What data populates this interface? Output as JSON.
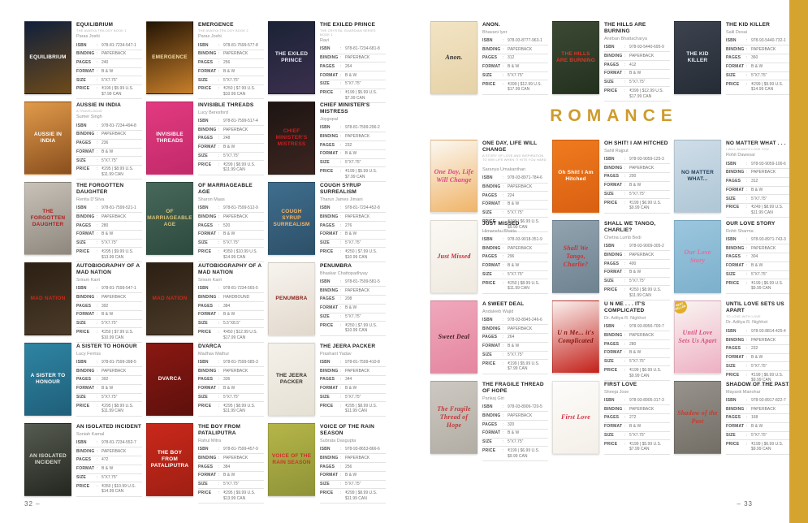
{
  "colon": ":",
  "section_header": "ROMANCE",
  "accent_gold": "#D5A42F",
  "page_left_number": "32 –",
  "page_right_number": "– 33",
  "spec_labels": {
    "isbn": "ISBN",
    "binding": "BINDING",
    "pages": "PAGES",
    "format": "FORMAT",
    "size": "SIZE",
    "price": "PRICE"
  },
  "books_left": [
    {
      "title": "EQUILIBRIUM",
      "subtitle": "THE AVASYA TRILOGY BOOK 1",
      "author": "Paras Joshi",
      "isbn": "978-81-7234-547-1",
      "binding": "PAPERBACK",
      "pages": "240",
      "format": "B & W",
      "size": "5\"X7.75\"",
      "price": "₹199 | $5.99 U.S.",
      "price2": "$7.99 CAN",
      "cover": {
        "c1": "#10203a",
        "c2": "#6e4a1a",
        "tc": "#ffffff",
        "label": "EQUILIBRIUM"
      }
    },
    {
      "title": "EMERGENCE",
      "subtitle": "THE AVASYA TRILOGY BOOK 2",
      "author": "Paras Joshi",
      "isbn": "978-81-7599-577-8",
      "binding": "PAPERBACK",
      "pages": "256",
      "format": "B & W",
      "size": "5\"X7.75\"",
      "price": "₹250 | $7.99 U.S.",
      "price2": "$10.99 CAN",
      "cover": {
        "c1": "#241505",
        "c2": "#c87f2a",
        "tc": "#f5dca6",
        "label": "EMERGENCE"
      }
    },
    {
      "title": "THE EXILED PRINCE",
      "subtitle": "THE CRYSTAL GUARDIAN SERIES BOOK 1",
      "author": "Ravi",
      "isbn": "978-81-7234-681-8",
      "binding": "PAPERBACK",
      "pages": "264",
      "format": "B & W",
      "size": "5\"X7.75\"",
      "price": "₹199 | $5.99 U.S.",
      "price2": "$7.99 CAN",
      "cover": {
        "c1": "#1b2336",
        "c2": "#3b2f4e",
        "tc": "#e9e9f2",
        "label": "THE EXILED PRINCE"
      }
    },
    {
      "title": "AUSSIE IN INDIA",
      "subtitle": "A TRAVELOGUE",
      "author": "Sumer Singh",
      "isbn": "978-81-7234-494-8",
      "binding": "PAPERBACK",
      "pages": "236",
      "format": "B & W",
      "size": "5\"X7.75\"",
      "price": "₹295 | $8.99 U.S.",
      "price2": "$11.99 CAN",
      "cover": {
        "c1": "#e09a4a",
        "c2": "#8a4f1e",
        "tc": "#ffffff",
        "label": "AUSSIE IN INDIA"
      }
    },
    {
      "title": "INVISIBLE THREADS",
      "author": "Lucy Beresford",
      "isbn": "978-81-7599-517-4",
      "binding": "PAPERBACK",
      "pages": "248",
      "format": "B & W",
      "size": "5\"X7.75\"",
      "price": "₹299 | $8.99 U.S.",
      "price2": "$11.99 CAN",
      "cover": {
        "c1": "#e23a80",
        "c2": "#c22a6a",
        "tc": "#ffffff",
        "label": "INVISIBLE THREADS"
      }
    },
    {
      "title": "CHIEF MINISTER'S MISTRESS",
      "author": "Joygopal",
      "isbn": "978-81-7599-296-2",
      "binding": "PAPERBACK",
      "pages": "232",
      "format": "B & W",
      "size": "5\"X7.75\"",
      "price": "₹199 | $5.99 U.S.",
      "price2": "$7.99 CAN",
      "cover": {
        "c1": "#1d1512",
        "c2": "#3c2521",
        "tc": "#c81f1f",
        "label": "CHIEF MINISTER'S MISTRESS"
      }
    },
    {
      "title": "THE FORGOTTEN DAUGHTER",
      "author": "Renita D'Silva",
      "isbn": "978-81-7599-521-1",
      "binding": "PAPERBACK",
      "pages": "280",
      "format": "B & W",
      "size": "5\"X7.75\"",
      "price": "₹295 | $9.99 U.S.",
      "price2": "$13.99 CAN",
      "cover": {
        "c1": "#c9c2b8",
        "c2": "#8d877e",
        "tc": "#b02020",
        "label": "THE FORGOTTEN DAUGHTER"
      }
    },
    {
      "title": "OF MARRIAGEABLE AGE",
      "author": "Sharon Maas",
      "isbn": "978-81-7599-512-9",
      "binding": "PAPERBACK",
      "pages": "520",
      "format": "B & W",
      "size": "5\"X7.75\"",
      "price": "₹350 | $10.99 U.S.",
      "price2": "$14.99 CAN",
      "cover": {
        "c1": "#47685a",
        "c2": "#2d4a3e",
        "tc": "#d8c27a",
        "label": "OF MARRIAGEABLE AGE"
      }
    },
    {
      "title": "COUGH SYRUP SURREALISM",
      "author": "Tharun James Jimani",
      "isbn": "978-81-7234-452-8",
      "binding": "PAPERBACK",
      "pages": "276",
      "format": "B & W",
      "size": "5\"X7.75\"",
      "price": "₹250 | $7.99 U.S.",
      "price2": "$10.99 CAN",
      "cover": {
        "c1": "#3f6e8e",
        "c2": "#2d5068",
        "tc": "#ffb45e",
        "label": "COUGH SYRUP SURREALISM"
      }
    },
    {
      "title": "AUTOBIOGRAPHY OF A MAD NATION",
      "author": "Sriram Karri",
      "isbn": "978-81-7599-547-1",
      "binding": "PAPERBACK",
      "pages": "392",
      "format": "B & W",
      "size": "5\"X7.75\"",
      "price": "₹250 | $7.99 U.S.",
      "price2": "$10.99 CAN",
      "cover": {
        "c1": "#2c2014",
        "c2": "#4a3a28",
        "tc": "#c62a1a",
        "label": "MAD NATION"
      }
    },
    {
      "title": "AUTOBIOGRAPHY OF A MAD NATION",
      "author": "Sriram Karri",
      "isbn": "978-81-7234-565-5",
      "binding": "HARDBOUND",
      "pages": "384",
      "format": "B & W",
      "size": "5.5\"X8.5\"",
      "price": "₹450 | $12.99 U.S.",
      "price2": "$17.99 CAN",
      "cover": {
        "c1": "#2c2014",
        "c2": "#4a3a28",
        "tc": "#c62a1a",
        "label": "MAD NATION"
      }
    },
    {
      "title": "PENUMBRA",
      "author": "Bhaskar Chattopadhyay",
      "isbn": "978-81-7599-581-5",
      "binding": "PAPERBACK",
      "pages": "208",
      "format": "B & W",
      "size": "5\"X7.75\"",
      "price": "₹250 | $7.99 U.S.",
      "price2": "$10.99 CAN",
      "cover": {
        "c1": "#f7f4ef",
        "c2": "#e2d8cc",
        "tc": "#8a2018",
        "label": "PENUMBRA"
      }
    },
    {
      "title": "A SISTER TO HONOUR",
      "author": "Lucy Ferriss",
      "isbn": "978-81-7599-398-5",
      "binding": "PAPERBACK",
      "pages": "392",
      "format": "B & W",
      "size": "5\"X7.75\"",
      "price": "₹295 | $8.99 U.S.",
      "price2": "$11.99 CAN",
      "cover": {
        "c1": "#2e85a3",
        "c2": "#1f5f7a",
        "tc": "#ffffff",
        "label": "A SISTER TO HONOUR"
      }
    },
    {
      "title": "DVARCA",
      "author": "Madhav Mathur",
      "isbn": "978-81-7599-585-3",
      "binding": "PAPERBACK",
      "pages": "336",
      "format": "B & W",
      "size": "5\"X7.75\"",
      "price": "₹295 | $8.99 U.S.",
      "price2": "$11.99 CAN",
      "cover": {
        "c1": "#8a1812",
        "c2": "#5e100c",
        "tc": "#ffffff",
        "label": "DVARCA"
      }
    },
    {
      "title": "THE JEERA PACKER",
      "author": "Prashant Yadav",
      "isbn": "978-81-7599-410-8",
      "binding": "PAPERBACK",
      "pages": "344",
      "format": "B & W",
      "size": "5\"X7.75\"",
      "price": "₹295 | $8.99 U.S.",
      "price2": "$11.99 CAN",
      "cover": {
        "c1": "#f4f1ea",
        "c2": "#e6e0d4",
        "tc": "#38332d",
        "label": "THE JEERA PACKER"
      }
    },
    {
      "title": "AN ISOLATED INCIDENT",
      "author": "Soniah Kamal",
      "isbn": "978-81-7234-552-7",
      "binding": "PAPERBACK",
      "pages": "472",
      "format": "B & W",
      "size": "5\"X7.75\"",
      "price": "₹350 | $10.99 U.S.",
      "price2": "$14.99 CAN",
      "cover": {
        "c1": "#565b52",
        "c2": "#23271f",
        "tc": "#dcdcd2",
        "label": "AN ISOLATED INCIDENT"
      }
    },
    {
      "title": "THE BOY FROM PATALIPUTRA",
      "author": "Rahul Mitra",
      "isbn": "978-81-7599-457-9",
      "binding": "PAPERBACK",
      "pages": "384",
      "format": "B & W",
      "size": "5\"X7.75\"",
      "price": "₹295 | $9.99 U.S.",
      "price2": "$13.99 CAN",
      "cover": {
        "c1": "#c8281a",
        "c2": "#a01f14",
        "tc": "#ffffff",
        "label": "THE BOY FROM PATALIPUTRA"
      }
    },
    {
      "title": "VOICE OF THE RAIN SEASON",
      "author": "Subrata Dasgupta",
      "isbn": "978-93-8653-866-6",
      "binding": "PAPERBACK",
      "pages": "256",
      "format": "B & W",
      "size": "5\"X7.75\"",
      "price": "₹299 | $8.99 U.S.",
      "price2": "$11.99 CAN",
      "cover": {
        "c1": "#b5b548",
        "c2": "#8f9338",
        "tc": "#c8352a",
        "label": "VOICE OF THE RAIN SEASON"
      }
    }
  ],
  "books_right_top": [
    {
      "title": "ANON.",
      "author": "Bhavani Iyer",
      "isbn": "978-93-8777-963-1",
      "binding": "PAPERBACK",
      "pages": "312",
      "format": "B & W",
      "size": "5\"X7.75\"",
      "price": "₹399 | $12.99 U.S.",
      "price2": "$17.99 CAN",
      "cover": {
        "c1": "#f2e4c4",
        "c2": "#e6d2a8",
        "tc": "#2a2a2a",
        "label": "Anon.",
        "serif": true
      }
    },
    {
      "title": "THE HILLS ARE BURNING",
      "author": "Anirban Bhattacharya",
      "isbn": "978-93-5440-695-9",
      "binding": "PAPERBACK",
      "pages": "412",
      "format": "B & W",
      "size": "5\"X7.75\"",
      "price": "₹399 | $12.99 U.S.",
      "price2": "$17.99 CAN",
      "cover": {
        "c1": "#3c4a34",
        "c2": "#22301e",
        "tc": "#e03428",
        "label": "THE HILLS ARE BURNING"
      }
    },
    {
      "title": "THE KID KILLER",
      "author": "Salil Desai",
      "isbn": "978-93-5440-732-1",
      "binding": "PAPERBACK",
      "pages": "360",
      "format": "B & W",
      "size": "5\"X7.75\"",
      "price": "₹299 | $9.99 U.S.",
      "price2": "$14.99 CAN",
      "cover": {
        "c1": "#3c434e",
        "c2": "#262c36",
        "tc": "#e9eff5",
        "label": "THE KID KILLER"
      }
    }
  ],
  "books_romance": [
    {
      "title": "ONE DAY, LIFE WILL CHANGE",
      "subtitle": "A STORY OF LOVE AND INSPIRATION TO WIN LIFE WHEN IT HITS YOU HARD . . .",
      "author": "Saranya Umakanthan",
      "isbn": "978-93-8971-784-6",
      "binding": "PAPERBACK",
      "pages": "224",
      "format": "B & W",
      "size": "5\"X7.75\"",
      "price": "₹199 | $6.99 U.S.",
      "price2": "$9.99 CAN",
      "cover": {
        "c1": "#fbf8f2",
        "c2": "#f0b468",
        "tc": "#e0408a",
        "label": "One Day, Life Will Change",
        "serif": true
      }
    },
    {
      "title": "OH SHIT! I AM HITCHED",
      "author": "Sahil Rajput",
      "isbn": "978-93-9059-125-3",
      "binding": "PAPERBACK",
      "pages": "200",
      "format": "B & W",
      "size": "5\"X7.75\"",
      "price": "₹199 | $6.99 U.S.",
      "price2": "$9.99 CAN",
      "cover": {
        "c1": "#ef7b1e",
        "c2": "#d95f12",
        "tc": "#ffffff",
        "label": "Oh Shit! I Am Hitched"
      }
    },
    {
      "title": "NO MATTER WHAT . . .",
      "subtitle": "I WILL ALWAYS LOVE YOU",
      "author": "Rohit Dawesar",
      "isbn": "978-93-9059-106-6",
      "binding": "PAPERBACK",
      "pages": "312",
      "format": "B & W",
      "size": "5\"X7.75\"",
      "price": "₹249 | $8.99 U.S.",
      "price2": "$11.99 CAN",
      "cover": {
        "c1": "#cfdde8",
        "c2": "#aec6d6",
        "tc": "#24425e",
        "label": "NO MATTER WHAT..."
      }
    },
    {
      "title": "JUST MISSED",
      "author": "Himanshu Bhatia",
      "isbn": "978-93-9018-351-9",
      "binding": "PAPERBACK",
      "pages": "296",
      "format": "B & W",
      "size": "5\"X7.75\"",
      "price": "₹250 | $8.99 U.S.",
      "price2": "$11.99 CAN",
      "cover": {
        "c1": "#fbf9f5",
        "c2": "#efe9df",
        "tc": "#c42736",
        "label": "Just Missed",
        "serif": true
      }
    },
    {
      "title": "SHALL WE TANGO, CHARLIE?",
      "author": "Chetna Lumb Bedi",
      "isbn": "978-93-9009-305-2",
      "binding": "PAPERBACK",
      "pages": "400",
      "format": "B & W",
      "size": "5\"X7.75\"",
      "price": "₹250 | $8.99 U.S.",
      "price2": "$11.99 CAN",
      "cover": {
        "c1": "#93a3b0",
        "c2": "#6e8290",
        "tc": "#d22f2f",
        "label": "Shall We Tango, Charlie?",
        "serif": true
      }
    },
    {
      "title": "OUR LOVE STORY",
      "author": "Rohit Sharma",
      "isbn": "978-93-8971-743-3",
      "binding": "PAPERBACK",
      "pages": "304",
      "format": "B & W",
      "size": "5\"X7.75\"",
      "price": "₹199 | $6.99 U.S.",
      "price2": "$9.99 CAN",
      "cover": {
        "c1": "#9cc6de",
        "c2": "#7cb0cc",
        "tc": "#e86a9a",
        "label": "Our Love Story",
        "serif": true
      }
    },
    {
      "title": "A SWEET DEAL",
      "author": "Andaleeb Wajid",
      "isbn": "978-93-8945-246-6",
      "binding": "PAPERBACK",
      "pages": "264",
      "format": "B & W",
      "size": "5\"X7.75\"",
      "price": "₹199 | $5.99 U.S.",
      "price2": "$7.99 CAN",
      "cover": {
        "c1": "#f0a8bc",
        "c2": "#e4869f",
        "tc": "#4a2228",
        "label": "Sweet Deal",
        "serif": true
      }
    },
    {
      "title": "U N ME . . . IT'S COMPLICATED",
      "author": "Dr. Aditya R. Nighhot",
      "isbn": "978-93-8956-700-7",
      "binding": "PAPERBACK",
      "pages": "280",
      "format": "B & W",
      "size": "5\"X7.75\"",
      "price": "₹199 | $6.99 U.S.",
      "price2": "$9.99 CAN",
      "cover": {
        "c1": "#faf0ee",
        "c2": "#c32019",
        "tc": "#8a1510",
        "label": "U n Me... it's Complicated",
        "serif": true
      }
    },
    {
      "title": "UNTIL LOVE SETS US APART",
      "subtitle": "TO LOVE WITH LOVE",
      "author": "Dr. Aditya R. Nighhot",
      "isbn": "978-93-8814-425-4",
      "binding": "PAPERBACK",
      "pages": "232",
      "format": "B & W",
      "size": "5\"X7.75\"",
      "price": "₹199 | $6.99 U.S.",
      "price2": "$9.99 CAN",
      "badge": "BEST SELLER",
      "cover": {
        "c1": "#f9f4f2",
        "c2": "#eeb0c4",
        "tc": "#d94f7e",
        "label": "Until Love Sets Us Apart",
        "serif": true
      }
    },
    {
      "title": "THE FRAGILE THREAD OF HOPE",
      "author": "Pankaj Giri",
      "isbn": "978-93-8906-720-5",
      "binding": "PAPERBACK",
      "pages": "320",
      "format": "B & W",
      "size": "5\"X7.75\"",
      "price": "₹199 | $6.99 U.S.",
      "price2": "$9.99 CAN",
      "cover": {
        "c1": "#cdc9c2",
        "c2": "#b2ada4",
        "tc": "#c03a3a",
        "label": "The Fragile Thread of Hope",
        "serif": true
      }
    },
    {
      "title": "FIRST LOVE",
      "author": "Sheeja Jose",
      "isbn": "978-93-8905-317-3",
      "binding": "PAPERBACK",
      "pages": "272",
      "format": "B & W",
      "size": "5\"X7.75\"",
      "price": "₹199 | $5.99 U.S.",
      "price2": "$7.99 CAN",
      "cover": {
        "c1": "#fdfcfa",
        "c2": "#f4efe8",
        "tc": "#d22f45",
        "label": "First Love",
        "serif": true
      }
    },
    {
      "title": "SHADOW OF THE PAST",
      "author": "Mayank Manohar",
      "isbn": "978-93-8917-822-7",
      "binding": "PAPERBACK",
      "pages": "168",
      "format": "B & W",
      "size": "5\"X7.75\"",
      "price": "₹199 | $6.99 U.S.",
      "price2": "$9.99 CAN",
      "cover": {
        "c1": "#97938c",
        "c2": "#726e66",
        "tc": "#c8392e",
        "label": "Shadow of the Past",
        "serif": true
      }
    }
  ]
}
